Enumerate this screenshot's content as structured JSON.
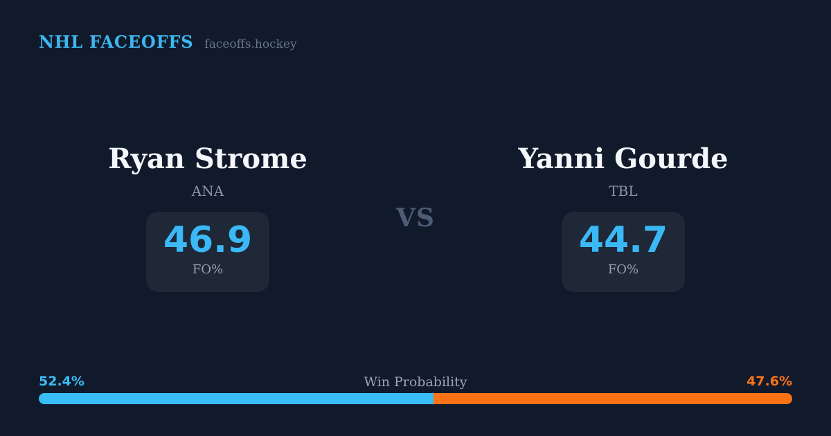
{
  "header": {
    "brand": "NHL FACEOFFS",
    "site": "faceoffs.hockey"
  },
  "matchup": {
    "vs_label": "VS",
    "players": [
      {
        "name": "Ryan Strome",
        "team": "ANA",
        "stat_value": "46.9",
        "stat_label": "FO%"
      },
      {
        "name": "Yanni Gourde",
        "team": "TBL",
        "stat_value": "44.7",
        "stat_label": "FO%"
      }
    ]
  },
  "win_probability": {
    "label": "Win Probability",
    "left_pct_label": "52.4%",
    "right_pct_label": "47.6%",
    "left_value": 52.4,
    "right_value": 47.6,
    "left_color": "#38bdf8",
    "right_color": "#f97316"
  },
  "colors": {
    "background": "#111a2b",
    "brand_blue": "#3eb7f0",
    "stat_blue": "#3bb8f6",
    "stat_box_bg": "#1e2836",
    "muted_gray": "#98a2b3",
    "vs_gray": "#4d5c75"
  },
  "chart_data": {
    "type": "bar",
    "subtype": "stacked-horizontal",
    "title": "Win Probability",
    "categories": [
      "Win Probability"
    ],
    "series": [
      {
        "name": "Ryan Strome (ANA)",
        "values": [
          52.4
        ],
        "color": "#38bdf8"
      },
      {
        "name": "Yanni Gourde (TBL)",
        "values": [
          47.6
        ],
        "color": "#f97316"
      }
    ],
    "xlim": [
      0,
      100
    ],
    "annotations": [
      "52.4%",
      "47.6%"
    ],
    "related_stats": [
      {
        "player": "Ryan Strome",
        "team": "ANA",
        "metric": "FO%",
        "value": 46.9
      },
      {
        "player": "Yanni Gourde",
        "team": "TBL",
        "metric": "FO%",
        "value": 44.7
      }
    ]
  }
}
